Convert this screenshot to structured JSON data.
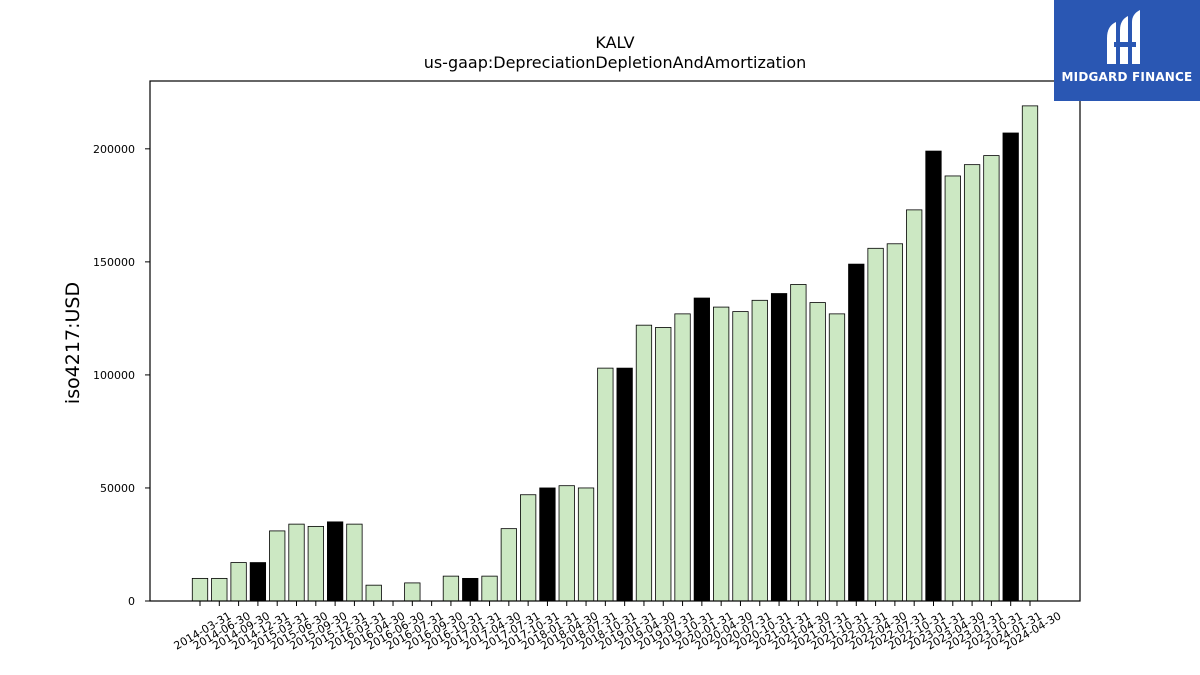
{
  "logo": {
    "text": "MIDGARD FINANCE",
    "icon": "midgard-logo-icon",
    "color": "#2a57b3"
  },
  "chart_data": {
    "type": "bar",
    "title": "KALV",
    "subtitle": "us-gaap:DepreciationDepletionAndAmortization",
    "xlabel": "",
    "ylabel": "iso4217:USD",
    "ylim": [
      0,
      230000
    ],
    "yticks": [
      0,
      50000,
      100000,
      150000,
      200000
    ],
    "grid": false,
    "colors": {
      "quarter": "#cce8c3",
      "annual": "#000000",
      "edge": "#000000"
    },
    "categories": [
      "2014-03-31",
      "2014-06-30",
      "2014-09-30",
      "2014-12-31",
      "2015-03-31",
      "2015-06-30",
      "2015-09-30",
      "2015-12-31",
      "2016-03-31",
      "2016-04-30",
      "2016-06-30",
      "2016-07-31",
      "2016-09-30",
      "2016-10-31",
      "2017-01-31",
      "2017-04-30",
      "2017-07-31",
      "2017-10-31",
      "2018-01-31",
      "2018-04-30",
      "2018-07-31",
      "2018-10-31",
      "2019-01-31",
      "2019-04-30",
      "2019-07-31",
      "2019-10-31",
      "2020-01-31",
      "2020-04-30",
      "2020-07-31",
      "2020-10-31",
      "2021-01-31",
      "2021-04-30",
      "2021-07-31",
      "2021-10-31",
      "2022-01-31",
      "2022-04-30",
      "2022-07-31",
      "2022-10-31",
      "2023-01-31",
      "2023-04-30",
      "2023-07-31",
      "2023-10-31",
      "2024-01-31",
      "2024-04-30"
    ],
    "values": [
      10000,
      10000,
      17000,
      17000,
      31000,
      34000,
      33000,
      35000,
      34000,
      7000,
      0,
      8000,
      0,
      11000,
      10000,
      11000,
      32000,
      47000,
      50000,
      51000,
      50000,
      103000,
      103000,
      122000,
      121000,
      127000,
      134000,
      130000,
      128000,
      133000,
      136000,
      140000,
      132000,
      127000,
      149000,
      156000,
      158000,
      173000,
      199000,
      188000,
      193000,
      197000,
      207000,
      219000
    ],
    "annual": [
      false,
      false,
      false,
      true,
      false,
      false,
      false,
      true,
      false,
      false,
      false,
      false,
      false,
      false,
      true,
      false,
      false,
      false,
      true,
      false,
      false,
      false,
      true,
      false,
      false,
      false,
      true,
      false,
      false,
      false,
      true,
      false,
      false,
      false,
      true,
      false,
      false,
      false,
      true,
      false,
      false,
      false,
      true,
      false
    ]
  }
}
